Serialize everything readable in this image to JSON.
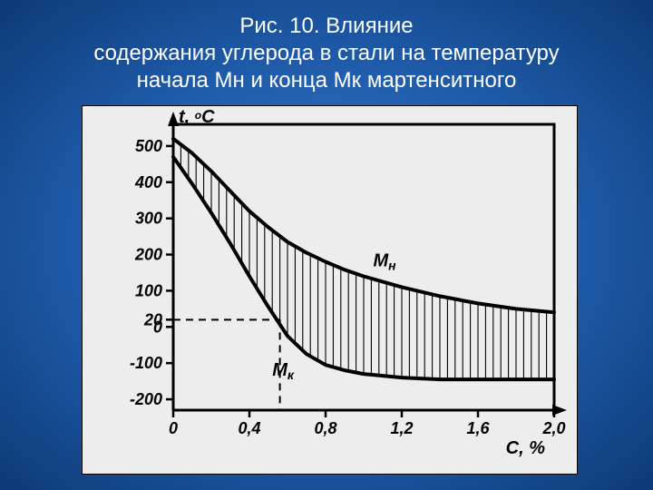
{
  "title_line1": "Рис. 10. Влияние",
  "title_line2": "содержания углерода в стали на температуру",
  "title_line3": "начала Мн и конца Мк мартенситного",
  "chart": {
    "type": "line-area",
    "background_color": "#ededed",
    "stroke_color": "#000000",
    "y_axis_label": "t, °C",
    "x_axis_label": "C, %",
    "axis_label_fontsize": 20,
    "tick_fontsize": 18,
    "y_ticks": [
      -200,
      -100,
      0,
      20,
      100,
      200,
      300,
      400,
      500
    ],
    "x_ticks": [
      0,
      0.4,
      0.8,
      1.2,
      1.6,
      2.0
    ],
    "y_tick_labels": [
      "-200",
      "-100",
      "0",
      "20",
      "100",
      "200",
      "300",
      "400",
      "500"
    ],
    "x_tick_labels": [
      "0",
      "0,4",
      "0,8",
      "1,2",
      "1,6",
      "2,0"
    ],
    "ylim": [
      -230,
      560
    ],
    "xlim": [
      0,
      2.0
    ],
    "series": {
      "Mn": {
        "label": "Мн",
        "points": [
          [
            0.0,
            520
          ],
          [
            0.1,
            480
          ],
          [
            0.2,
            430
          ],
          [
            0.3,
            375
          ],
          [
            0.4,
            320
          ],
          [
            0.5,
            275
          ],
          [
            0.6,
            235
          ],
          [
            0.7,
            205
          ],
          [
            0.8,
            180
          ],
          [
            0.9,
            158
          ],
          [
            1.0,
            140
          ],
          [
            1.2,
            110
          ],
          [
            1.4,
            85
          ],
          [
            1.6,
            65
          ],
          [
            1.8,
            50
          ],
          [
            2.0,
            40
          ]
        ]
      },
      "Mk": {
        "label": "Мк",
        "points": [
          [
            0.0,
            470
          ],
          [
            0.1,
            395
          ],
          [
            0.2,
            315
          ],
          [
            0.3,
            230
          ],
          [
            0.4,
            140
          ],
          [
            0.5,
            55
          ],
          [
            0.6,
            -25
          ],
          [
            0.7,
            -75
          ],
          [
            0.8,
            -105
          ],
          [
            0.9,
            -120
          ],
          [
            1.0,
            -130
          ],
          [
            1.2,
            -140
          ],
          [
            1.4,
            -145
          ],
          [
            1.6,
            -145
          ],
          [
            1.8,
            -145
          ],
          [
            2.0,
            -145
          ]
        ]
      }
    },
    "hatch_x_step": 0.04,
    "dashed_ref_y": 20,
    "dashed_ref_x": 0.56,
    "curve_stroke_width": 4,
    "axis_stroke_width": 3,
    "tick_stroke_width": 2.5
  }
}
